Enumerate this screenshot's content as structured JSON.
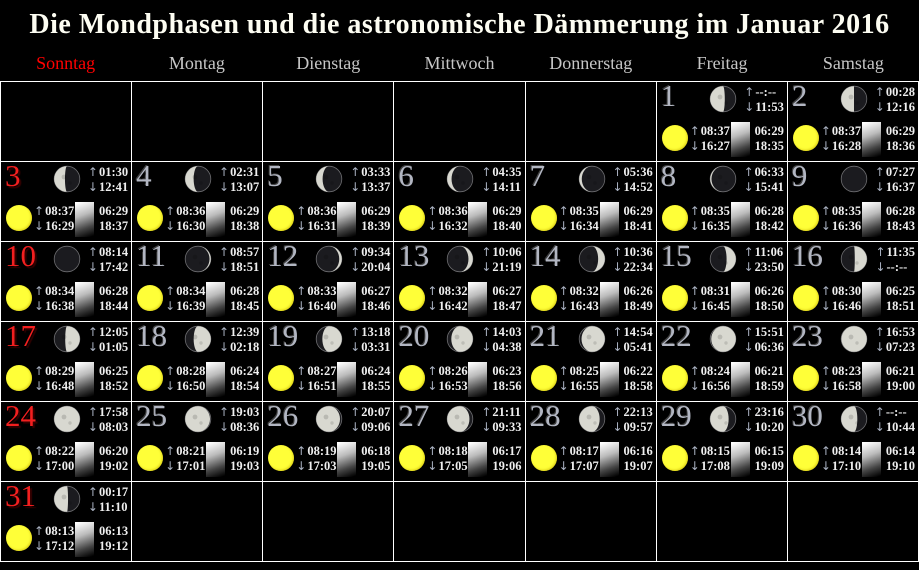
{
  "title": "Die Mondphasen und die astronomische Dämmerung im Januar 2016",
  "weekdays": [
    "Sonntag",
    "Montag",
    "Dienstag",
    "Mittwoch",
    "Donnerstag",
    "Freitag",
    "Samstag"
  ],
  "icons": {
    "rise_arrow": "↑",
    "set_arrow": "↓",
    "moon": "moon-phase-icon",
    "sun": "sun-icon",
    "twilight": "twilight-gradient-icon"
  },
  "colors": {
    "background": "#000000",
    "grid_border": "#ffffff",
    "sunday_red": "#ff0000",
    "weekday_gray": "#c6c6c6",
    "day_number_gray": "#b2b6c2",
    "time_text": "#efefef",
    "sun_yellow": "#ffff38",
    "moon_lit": "#d8d8d0",
    "moon_dark": "#1b1b1f"
  },
  "days": [
    {
      "day": 1,
      "week_row": 0,
      "weekday_col": 5,
      "is_sunday": false,
      "moon": {
        "fraction": 0.57,
        "waxing": false
      },
      "moonrise": "--:--",
      "moonset": "11:53",
      "sunrise": "08:37",
      "sunset": "16:27",
      "astro_dawn": "06:29",
      "astro_dusk": "18:35"
    },
    {
      "day": 2,
      "week_row": 0,
      "weekday_col": 6,
      "is_sunday": false,
      "moon": {
        "fraction": 0.5,
        "waxing": false
      },
      "moonrise": "00:28",
      "moonset": "12:16",
      "sunrise": "08:37",
      "sunset": "16:28",
      "astro_dawn": "06:29",
      "astro_dusk": "18:36"
    },
    {
      "day": 3,
      "week_row": 1,
      "weekday_col": 0,
      "is_sunday": true,
      "moon": {
        "fraction": 0.42,
        "waxing": false
      },
      "moonrise": "01:30",
      "moonset": "12:41",
      "sunrise": "08:37",
      "sunset": "16:29",
      "astro_dawn": "06:29",
      "astro_dusk": "18:37"
    },
    {
      "day": 4,
      "week_row": 1,
      "weekday_col": 1,
      "is_sunday": false,
      "moon": {
        "fraction": 0.33,
        "waxing": false
      },
      "moonrise": "02:31",
      "moonset": "13:07",
      "sunrise": "08:36",
      "sunset": "16:30",
      "astro_dawn": "06:29",
      "astro_dusk": "18:38"
    },
    {
      "day": 5,
      "week_row": 1,
      "weekday_col": 2,
      "is_sunday": false,
      "moon": {
        "fraction": 0.25,
        "waxing": false
      },
      "moonrise": "03:33",
      "moonset": "13:37",
      "sunrise": "08:36",
      "sunset": "16:31",
      "astro_dawn": "06:29",
      "astro_dusk": "18:39"
    },
    {
      "day": 6,
      "week_row": 1,
      "weekday_col": 3,
      "is_sunday": false,
      "moon": {
        "fraction": 0.17,
        "waxing": false
      },
      "moonrise": "04:35",
      "moonset": "14:11",
      "sunrise": "08:36",
      "sunset": "16:32",
      "astro_dawn": "06:29",
      "astro_dusk": "18:40"
    },
    {
      "day": 7,
      "week_row": 1,
      "weekday_col": 4,
      "is_sunday": false,
      "moon": {
        "fraction": 0.1,
        "waxing": false
      },
      "moonrise": "05:36",
      "moonset": "14:52",
      "sunrise": "08:35",
      "sunset": "16:34",
      "astro_dawn": "06:29",
      "astro_dusk": "18:41"
    },
    {
      "day": 8,
      "week_row": 1,
      "weekday_col": 5,
      "is_sunday": false,
      "moon": {
        "fraction": 0.05,
        "waxing": false
      },
      "moonrise": "06:33",
      "moonset": "15:41",
      "sunrise": "08:35",
      "sunset": "16:35",
      "astro_dawn": "06:28",
      "astro_dusk": "18:42"
    },
    {
      "day": 9,
      "week_row": 1,
      "weekday_col": 6,
      "is_sunday": false,
      "moon": {
        "fraction": 0.01,
        "waxing": false
      },
      "moonrise": "07:27",
      "moonset": "16:37",
      "sunrise": "08:35",
      "sunset": "16:36",
      "astro_dawn": "06:28",
      "astro_dusk": "18:43"
    },
    {
      "day": 10,
      "week_row": 2,
      "weekday_col": 0,
      "is_sunday": true,
      "moon": {
        "fraction": 0.01,
        "waxing": true
      },
      "moonrise": "08:14",
      "moonset": "17:42",
      "sunrise": "08:34",
      "sunset": "16:38",
      "astro_dawn": "06:28",
      "astro_dusk": "18:44"
    },
    {
      "day": 11,
      "week_row": 2,
      "weekday_col": 1,
      "is_sunday": false,
      "moon": {
        "fraction": 0.05,
        "waxing": true
      },
      "moonrise": "08:57",
      "moonset": "18:51",
      "sunrise": "08:34",
      "sunset": "16:39",
      "astro_dawn": "06:28",
      "astro_dusk": "18:45"
    },
    {
      "day": 12,
      "week_row": 2,
      "weekday_col": 2,
      "is_sunday": false,
      "moon": {
        "fraction": 0.1,
        "waxing": true
      },
      "moonrise": "09:34",
      "moonset": "20:04",
      "sunrise": "08:33",
      "sunset": "16:40",
      "astro_dawn": "06:27",
      "astro_dusk": "18:46"
    },
    {
      "day": 13,
      "week_row": 2,
      "weekday_col": 3,
      "is_sunday": false,
      "moon": {
        "fraction": 0.17,
        "waxing": true
      },
      "moonrise": "10:06",
      "moonset": "21:19",
      "sunrise": "08:32",
      "sunset": "16:42",
      "astro_dawn": "06:27",
      "astro_dusk": "18:47"
    },
    {
      "day": 14,
      "week_row": 2,
      "weekday_col": 4,
      "is_sunday": false,
      "moon": {
        "fraction": 0.26,
        "waxing": true
      },
      "moonrise": "10:36",
      "moonset": "22:34",
      "sunrise": "08:32",
      "sunset": "16:43",
      "astro_dawn": "06:26",
      "astro_dusk": "18:49"
    },
    {
      "day": 15,
      "week_row": 2,
      "weekday_col": 5,
      "is_sunday": false,
      "moon": {
        "fraction": 0.36,
        "waxing": true
      },
      "moonrise": "11:06",
      "moonset": "23:50",
      "sunrise": "08:31",
      "sunset": "16:45",
      "astro_dawn": "06:26",
      "astro_dusk": "18:50"
    },
    {
      "day": 16,
      "week_row": 2,
      "weekday_col": 6,
      "is_sunday": false,
      "moon": {
        "fraction": 0.47,
        "waxing": true
      },
      "moonrise": "11:35",
      "moonset": "--:--",
      "sunrise": "08:30",
      "sunset": "16:46",
      "astro_dawn": "06:25",
      "astro_dusk": "18:51"
    },
    {
      "day": 17,
      "week_row": 3,
      "weekday_col": 0,
      "is_sunday": true,
      "moon": {
        "fraction": 0.57,
        "waxing": true
      },
      "moonrise": "12:05",
      "moonset": "01:05",
      "sunrise": "08:29",
      "sunset": "16:48",
      "astro_dawn": "06:25",
      "astro_dusk": "18:52"
    },
    {
      "day": 18,
      "week_row": 3,
      "weekday_col": 1,
      "is_sunday": false,
      "moon": {
        "fraction": 0.67,
        "waxing": true
      },
      "moonrise": "12:39",
      "moonset": "02:18",
      "sunrise": "08:28",
      "sunset": "16:50",
      "astro_dawn": "06:24",
      "astro_dusk": "18:54"
    },
    {
      "day": 19,
      "week_row": 3,
      "weekday_col": 2,
      "is_sunday": false,
      "moon": {
        "fraction": 0.76,
        "waxing": true
      },
      "moonrise": "13:18",
      "moonset": "03:31",
      "sunrise": "08:27",
      "sunset": "16:51",
      "astro_dawn": "06:24",
      "astro_dusk": "18:55"
    },
    {
      "day": 20,
      "week_row": 3,
      "weekday_col": 3,
      "is_sunday": false,
      "moon": {
        "fraction": 0.84,
        "waxing": true
      },
      "moonrise": "14:03",
      "moonset": "04:38",
      "sunrise": "08:26",
      "sunset": "16:53",
      "astro_dawn": "06:23",
      "astro_dusk": "18:56"
    },
    {
      "day": 21,
      "week_row": 3,
      "weekday_col": 4,
      "is_sunday": false,
      "moon": {
        "fraction": 0.91,
        "waxing": true
      },
      "moonrise": "14:54",
      "moonset": "05:41",
      "sunrise": "08:25",
      "sunset": "16:55",
      "astro_dawn": "06:22",
      "astro_dusk": "18:58"
    },
    {
      "day": 22,
      "week_row": 3,
      "weekday_col": 5,
      "is_sunday": false,
      "moon": {
        "fraction": 0.96,
        "waxing": true
      },
      "moonrise": "15:51",
      "moonset": "06:36",
      "sunrise": "08:24",
      "sunset": "16:56",
      "astro_dawn": "06:21",
      "astro_dusk": "18:59"
    },
    {
      "day": 23,
      "week_row": 3,
      "weekday_col": 6,
      "is_sunday": false,
      "moon": {
        "fraction": 0.99,
        "waxing": true
      },
      "moonrise": "16:53",
      "moonset": "07:23",
      "sunrise": "08:23",
      "sunset": "16:58",
      "astro_dawn": "06:21",
      "astro_dusk": "19:00"
    },
    {
      "day": 24,
      "week_row": 4,
      "weekday_col": 0,
      "is_sunday": true,
      "moon": {
        "fraction": 1.0,
        "waxing": false
      },
      "moonrise": "17:58",
      "moonset": "08:03",
      "sunrise": "08:22",
      "sunset": "17:00",
      "astro_dawn": "06:20",
      "astro_dusk": "19:02"
    },
    {
      "day": 25,
      "week_row": 4,
      "weekday_col": 1,
      "is_sunday": false,
      "moon": {
        "fraction": 0.97,
        "waxing": false
      },
      "moonrise": "19:03",
      "moonset": "08:36",
      "sunrise": "08:21",
      "sunset": "17:01",
      "astro_dawn": "06:19",
      "astro_dusk": "19:03"
    },
    {
      "day": 26,
      "week_row": 4,
      "weekday_col": 2,
      "is_sunday": false,
      "moon": {
        "fraction": 0.93,
        "waxing": false
      },
      "moonrise": "20:07",
      "moonset": "09:06",
      "sunrise": "08:19",
      "sunset": "17:03",
      "astro_dawn": "06:18",
      "astro_dusk": "19:05"
    },
    {
      "day": 27,
      "week_row": 4,
      "weekday_col": 3,
      "is_sunday": false,
      "moon": {
        "fraction": 0.87,
        "waxing": false
      },
      "moonrise": "21:11",
      "moonset": "09:33",
      "sunrise": "08:18",
      "sunset": "17:05",
      "astro_dawn": "06:17",
      "astro_dusk": "19:06"
    },
    {
      "day": 28,
      "week_row": 4,
      "weekday_col": 4,
      "is_sunday": false,
      "moon": {
        "fraction": 0.8,
        "waxing": false
      },
      "moonrise": "22:13",
      "moonset": "09:57",
      "sunrise": "08:17",
      "sunset": "17:07",
      "astro_dawn": "06:16",
      "astro_dusk": "19:07"
    },
    {
      "day": 29,
      "week_row": 4,
      "weekday_col": 5,
      "is_sunday": false,
      "moon": {
        "fraction": 0.72,
        "waxing": false
      },
      "moonrise": "23:16",
      "moonset": "10:20",
      "sunrise": "08:15",
      "sunset": "17:08",
      "astro_dawn": "06:15",
      "astro_dusk": "19:09"
    },
    {
      "day": 30,
      "week_row": 4,
      "weekday_col": 6,
      "is_sunday": false,
      "moon": {
        "fraction": 0.63,
        "waxing": false
      },
      "moonrise": "--:--",
      "moonset": "10:44",
      "sunrise": "08:14",
      "sunset": "17:10",
      "astro_dawn": "06:14",
      "astro_dusk": "19:10"
    },
    {
      "day": 31,
      "week_row": 5,
      "weekday_col": 0,
      "is_sunday": true,
      "moon": {
        "fraction": 0.54,
        "waxing": false
      },
      "moonrise": "00:17",
      "moonset": "11:10",
      "sunrise": "08:13",
      "sunset": "17:12",
      "astro_dawn": "06:13",
      "astro_dusk": "19:12"
    }
  ]
}
